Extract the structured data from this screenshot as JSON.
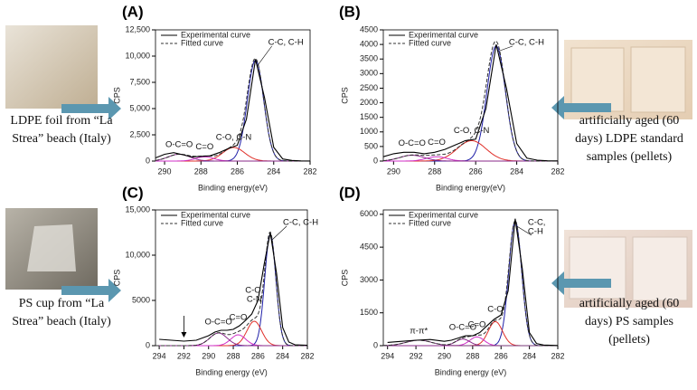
{
  "chart_data": [
    {
      "type": "line",
      "panel": "(A)",
      "sample": [
        "LDPE foil from “La",
        "Strea” beach (Italy)"
      ],
      "xlabel": "Binding energy(eV)",
      "ylabel": "CPS",
      "xlim": [
        290.5,
        282
      ],
      "xticks": [
        290,
        288,
        286,
        284,
        282
      ],
      "ylim": [
        0,
        12500
      ],
      "yticks": [
        0,
        {
          "value": 2500,
          "label": "2,500"
        },
        {
          "value": 5000,
          "label": "5,000"
        },
        {
          "value": 7500,
          "label": "7,500"
        },
        {
          "value": 10000,
          "label": "10,000"
        },
        {
          "value": 12500,
          "label": "12,500"
        }
      ],
      "series": [
        {
          "name": "Experimental curve",
          "color": "#000000",
          "x": [
            290.5,
            290,
            289.5,
            289,
            288.5,
            288,
            287.5,
            287,
            286.5,
            286,
            285.5,
            285,
            284.5,
            284,
            283.5,
            283,
            282.5,
            282
          ],
          "values": [
            300,
            650,
            800,
            600,
            400,
            450,
            500,
            800,
            1200,
            1500,
            4000,
            9700,
            6000,
            1300,
            200,
            60,
            20,
            10
          ]
        },
        {
          "name": "Fitted curve",
          "color": "#333333"
        }
      ],
      "peaks": [
        {
          "label": [
            "C-C, C-H"
          ],
          "center": 285,
          "height": 9600,
          "width": 0.45,
          "color": "#1f1fa8"
        },
        {
          "label": [
            "C-O, C-N"
          ],
          "center": 286.2,
          "height": 1300,
          "width": 0.6,
          "color": "#e0302a"
        },
        {
          "label": [
            "C=O"
          ],
          "center": 287.8,
          "height": 400,
          "width": 0.5,
          "color": "#d030c8"
        },
        {
          "label": [
            "O-C=O"
          ],
          "center": 289.2,
          "height": 650,
          "width": 0.6,
          "color": "#8a2a8a"
        }
      ]
    },
    {
      "type": "line",
      "panel": "(B)",
      "sample": [
        "artificially aged (60",
        "days) LDPE standard",
        "samples (pellets)"
      ],
      "xlabel": "Binding energy(eV)",
      "ylabel": "CPS",
      "xlim": [
        290.5,
        282
      ],
      "xticks": [
        290,
        288,
        286,
        284,
        282
      ],
      "ylim": [
        0,
        4500
      ],
      "yticks": [
        0,
        500,
        1000,
        1500,
        2000,
        2500,
        3000,
        3500,
        4000,
        4500
      ],
      "series": [
        {
          "name": "Experimental curve",
          "color": "#000000",
          "x": [
            290.5,
            290,
            289.5,
            289,
            288.5,
            288,
            287.5,
            287,
            286.5,
            286,
            285.5,
            285,
            284.5,
            284,
            283.5,
            283,
            282.5,
            282
          ],
          "values": [
            150,
            250,
            300,
            300,
            250,
            300,
            400,
            550,
            700,
            750,
            1800,
            4000,
            2500,
            600,
            100,
            30,
            10,
            5
          ]
        },
        {
          "name": "Fitted curve",
          "color": "#333333"
        }
      ],
      "peaks": [
        {
          "label": [
            "C-C, C-H"
          ],
          "center": 285,
          "height": 3950,
          "width": 0.45,
          "color": "#1f1fa8"
        },
        {
          "label": [
            "C-O, C-N"
          ],
          "center": 286.2,
          "height": 700,
          "width": 0.7,
          "color": "#e0302a"
        },
        {
          "label": [
            "C=O"
          ],
          "center": 287.9,
          "height": 150,
          "width": 0.5,
          "color": "#d030c8"
        },
        {
          "label": [
            "O-C=O"
          ],
          "center": 289.1,
          "height": 200,
          "width": 0.6,
          "color": "#8a2a8a"
        }
      ]
    },
    {
      "type": "line",
      "panel": "(C)",
      "sample": [
        "PS cup from “La",
        "Strea” beach (Italy)"
      ],
      "xlabel": "Binding energy (eV)",
      "ylabel": "CPS",
      "xlim": [
        294.3,
        282
      ],
      "xticks": [
        294,
        292,
        290,
        288,
        286,
        284,
        282
      ],
      "ylim": [
        0,
        15000
      ],
      "yticks": [
        0,
        5000,
        {
          "value": 10000,
          "label": "10,000"
        },
        {
          "value": 15000,
          "label": "15,000"
        }
      ],
      "series": [
        {
          "name": "Experimental curve",
          "color": "#000000",
          "x": [
            294,
            293,
            292,
            291,
            290,
            289.5,
            289,
            288.5,
            288,
            287.5,
            287,
            286.5,
            286,
            285.5,
            285,
            284.5,
            284,
            283.5,
            283,
            282
          ],
          "values": [
            700,
            600,
            500,
            600,
            1100,
            1500,
            1700,
            1700,
            1800,
            2200,
            2800,
            3500,
            5000,
            9000,
            12500,
            8000,
            2000,
            400,
            100,
            50
          ]
        },
        {
          "name": "Fitted curve",
          "color": "#333333"
        }
      ],
      "peaks": [
        {
          "label": [
            "C-C, C-H"
          ],
          "center": 285,
          "height": 12300,
          "width": 0.45,
          "color": "#1f1fa8"
        },
        {
          "label": [
            "C-O,",
            "C-N"
          ],
          "center": 286.3,
          "height": 2700,
          "width": 0.6,
          "color": "#e0302a"
        },
        {
          "label": [
            "C=O"
          ],
          "center": 287.6,
          "height": 1200,
          "width": 0.6,
          "color": "#d030c8"
        },
        {
          "label": [
            "O-C=O"
          ],
          "center": 289.2,
          "height": 1400,
          "width": 0.7,
          "color": "#8a2a8a"
        }
      ],
      "marker_x": 292
    },
    {
      "type": "line",
      "panel": "(D)",
      "sample": [
        "artificially aged (60",
        "days) PS samples",
        "(pellets)"
      ],
      "xlabel": "Binding energy (eV)",
      "ylabel": "CPS",
      "xlim": [
        294.3,
        282
      ],
      "xticks": [
        294,
        292,
        290,
        288,
        286,
        284,
        282
      ],
      "ylim": [
        0,
        6200
      ],
      "yticks": [
        0,
        1500,
        3000,
        4500,
        6000
      ],
      "series": [
        {
          "name": "Experimental curve",
          "color": "#000000",
          "x": [
            294,
            293,
            292,
            291,
            290,
            289.5,
            289,
            288.5,
            288,
            287.5,
            287,
            286.5,
            286,
            285.5,
            285,
            284.5,
            284,
            283.5,
            283,
            282
          ],
          "values": [
            150,
            200,
            250,
            280,
            200,
            250,
            350,
            450,
            450,
            600,
            900,
            1200,
            1400,
            2500,
            5800,
            3500,
            600,
            100,
            30,
            10
          ]
        },
        {
          "name": "Fitted curve",
          "color": "#333333"
        }
      ],
      "peaks": [
        {
          "label": [
            "C-C,",
            "C-H"
          ],
          "center": 285,
          "height": 5700,
          "width": 0.45,
          "color": "#1f1fa8"
        },
        {
          "label": [
            "C-O"
          ],
          "center": 286.4,
          "height": 1100,
          "width": 0.5,
          "color": "#e0302a"
        },
        {
          "label": [
            "C=O"
          ],
          "center": 287.7,
          "height": 400,
          "width": 0.5,
          "color": "#d030c8"
        },
        {
          "label": [
            "O-C=O"
          ],
          "center": 288.7,
          "height": 300,
          "width": 0.5,
          "color": "#8a2a8a"
        },
        {
          "label": [
            "π-π*"
          ],
          "center": 291.8,
          "height": 250,
          "width": 0.9,
          "color": "#7a3a7a"
        }
      ]
    }
  ]
}
